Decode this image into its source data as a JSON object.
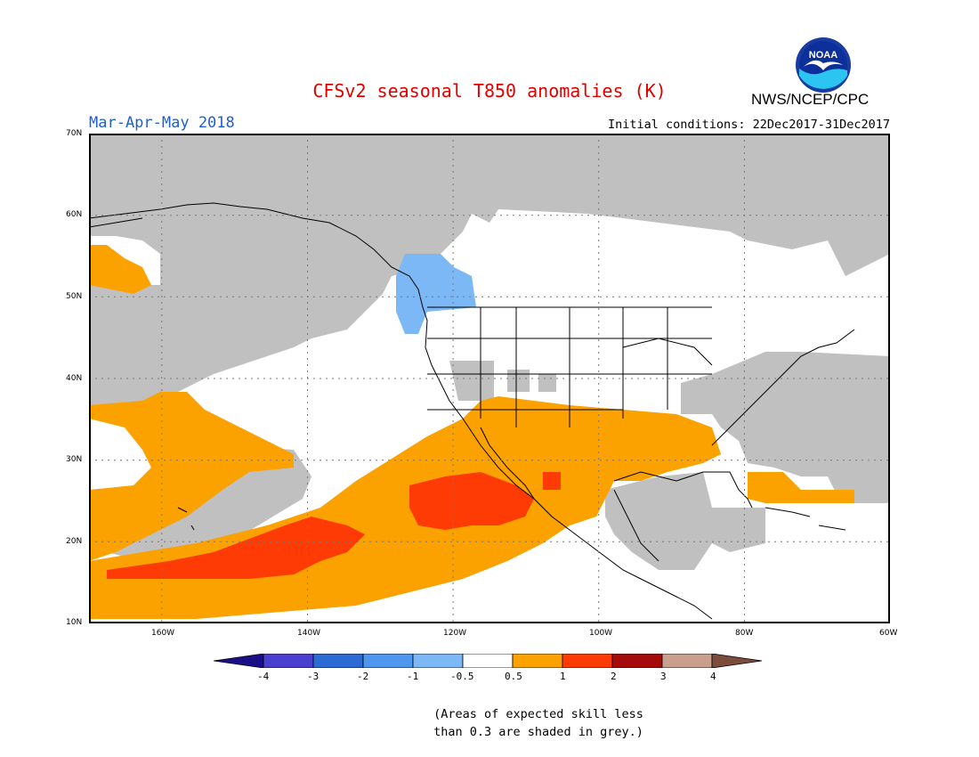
{
  "header": {
    "title": "CFSv2 seasonal T850 anomalies (K)",
    "agency": "NWS/NCEP/CPC",
    "logo_text": "NOAA",
    "season": "Mar-Apr-May 2018",
    "initial_conditions": "Initial conditions: 22Dec2017-31Dec2017"
  },
  "map": {
    "lat_labels": [
      "70N",
      "60N",
      "50N",
      "40N",
      "30N",
      "20N",
      "10N"
    ],
    "lon_labels": [
      "160W",
      "140W",
      "120W",
      "100W",
      "80W",
      "60W"
    ],
    "region": "North America / Eastern Pacific",
    "lat_range": [
      10,
      70
    ],
    "lon_range": [
      -170,
      -60
    ],
    "grid": true,
    "colors": {
      "grey_low_skill": "#c0c0c0",
      "land_outline": "#000000"
    }
  },
  "legend": {
    "colorbar": [
      {
        "range": "< -4",
        "color": "#1a0f86"
      },
      {
        "range": "-4 to -3",
        "color": "#4b3fcf"
      },
      {
        "range": "-3 to -2",
        "color": "#2c6ad4"
      },
      {
        "range": "-2 to -1",
        "color": "#4f97ee"
      },
      {
        "range": "-1 to -0.5",
        "color": "#7cb8f5"
      },
      {
        "range": "-0.5 to 0.5",
        "color": "#ffffff"
      },
      {
        "range": "0.5 to 1",
        "color": "#fba100"
      },
      {
        "range": "1 to 2",
        "color": "#fe3b05"
      },
      {
        "range": "2 to 3",
        "color": "#a50b0b"
      },
      {
        "range": "3 to 4",
        "color": "#c9a08e"
      },
      {
        "range": "> 4",
        "color": "#7c4c3c"
      }
    ],
    "tick_labels": [
      "-4",
      "-3",
      "-2",
      "-1",
      "-0.5",
      "0.5",
      "1",
      "2",
      "3",
      "4"
    ]
  },
  "note": {
    "line1": "(Areas of expected skill less",
    "line2": "than 0.3 are shaded in grey.)"
  }
}
